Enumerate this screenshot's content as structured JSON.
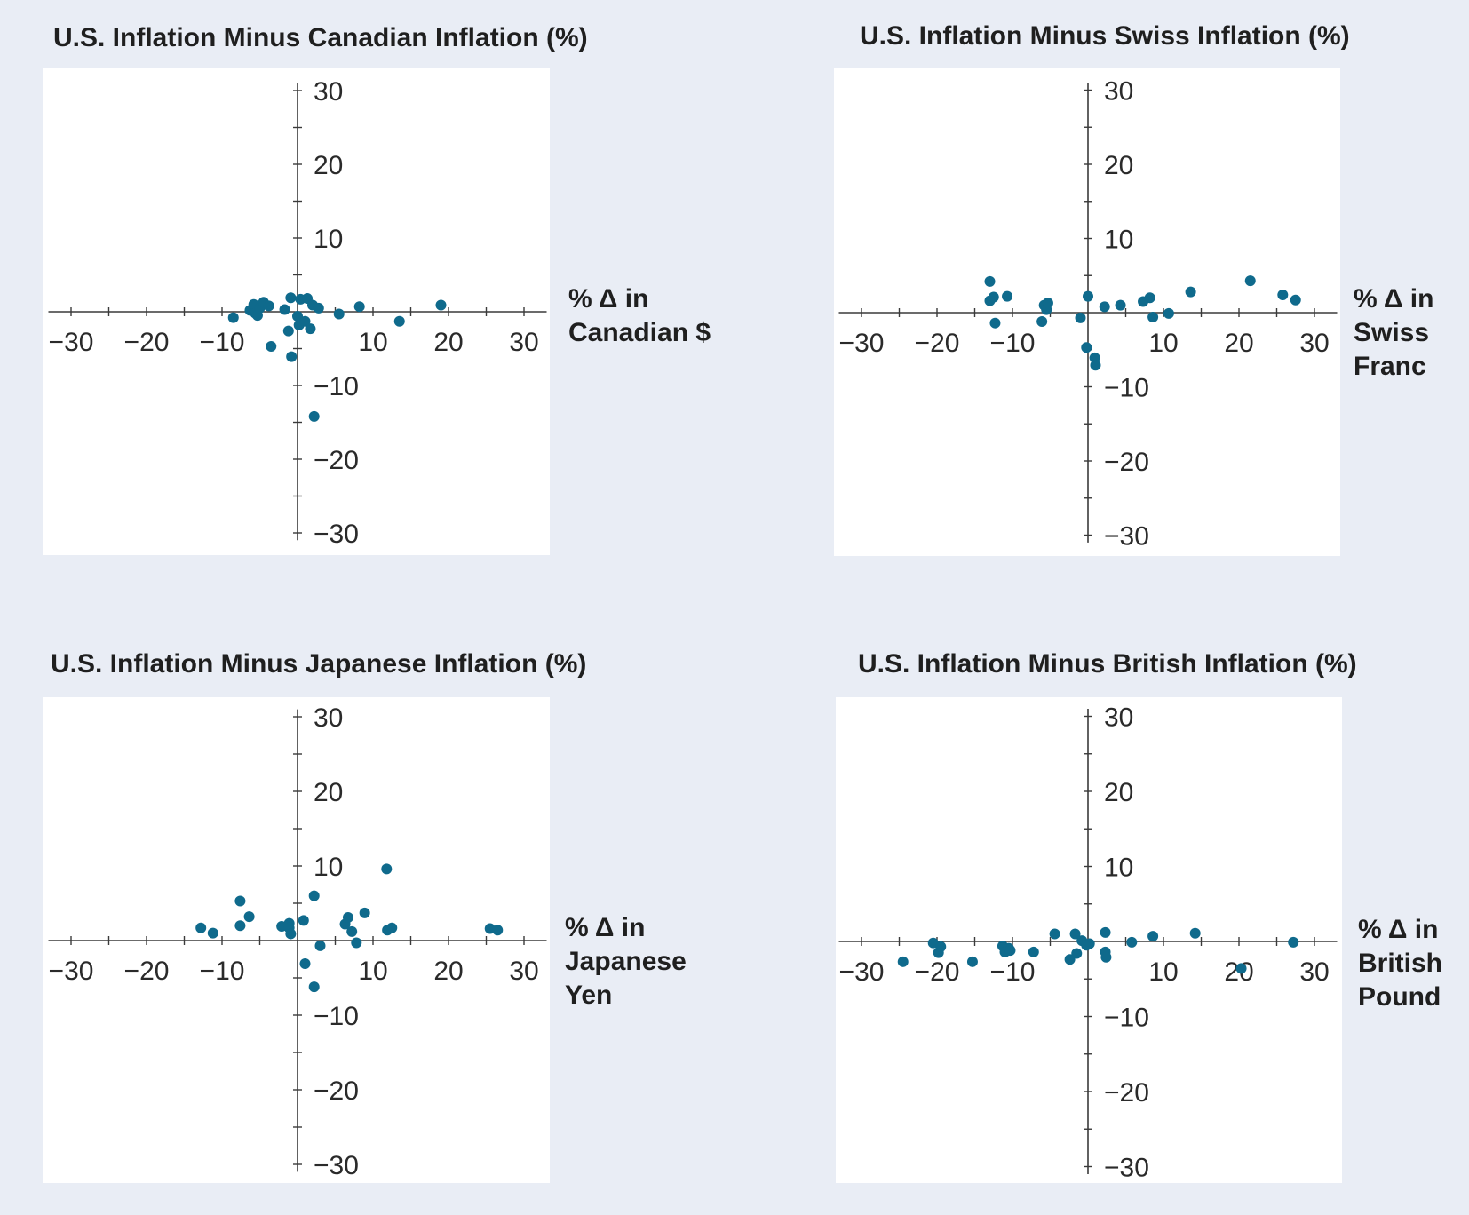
{
  "colors": {
    "background": "#e9edf5",
    "panel": "#ffffff",
    "point": "#0f6a8c",
    "axis": "#3a3a3a"
  },
  "chart_data": [
    {
      "type": "scatter",
      "title": "U.S. Inflation Minus Canadian Inflation (%)",
      "xlabel_lines": [
        "% Δ in",
        "Canadian $"
      ],
      "xlim": [
        -33,
        33
      ],
      "ylim": [
        -31,
        31
      ],
      "xticks": [
        -30,
        -20,
        -10,
        10,
        20,
        30
      ],
      "yticks": [
        30,
        20,
        10,
        -10,
        -20,
        -30
      ],
      "grid": false,
      "points": [
        {
          "x": -8.5,
          "y": -0.8
        },
        {
          "x": -6.3,
          "y": 0.2
        },
        {
          "x": -5.8,
          "y": 1.0
        },
        {
          "x": -5.6,
          "y": -0.2
        },
        {
          "x": -5.3,
          "y": -0.5
        },
        {
          "x": -5.0,
          "y": 0.5
        },
        {
          "x": -4.5,
          "y": 1.3
        },
        {
          "x": -3.8,
          "y": 0.8
        },
        {
          "x": -3.5,
          "y": -4.7
        },
        {
          "x": -1.7,
          "y": 0.3
        },
        {
          "x": -1.2,
          "y": -2.6
        },
        {
          "x": -0.9,
          "y": 1.9
        },
        {
          "x": -0.8,
          "y": -6.1
        },
        {
          "x": 0.0,
          "y": -0.6
        },
        {
          "x": 0.2,
          "y": -1.8
        },
        {
          "x": 0.4,
          "y": 1.7
        },
        {
          "x": 1.0,
          "y": -1.3
        },
        {
          "x": 1.3,
          "y": 1.8
        },
        {
          "x": 1.7,
          "y": -2.3
        },
        {
          "x": 2.0,
          "y": 0.9
        },
        {
          "x": 2.2,
          "y": -14.2
        },
        {
          "x": 2.8,
          "y": 0.5
        },
        {
          "x": 5.5,
          "y": -0.3
        },
        {
          "x": 8.2,
          "y": 0.7
        },
        {
          "x": 13.5,
          "y": -1.3
        },
        {
          "x": 19.0,
          "y": 0.9
        }
      ]
    },
    {
      "type": "scatter",
      "title": "U.S. Inflation Minus Swiss Inflation (%)",
      "xlabel_lines": [
        "% Δ in",
        "Swiss",
        "Franc"
      ],
      "xlim": [
        -33,
        33
      ],
      "ylim": [
        -31,
        31
      ],
      "xticks": [
        -30,
        -20,
        -10,
        10,
        20,
        30
      ],
      "yticks": [
        30,
        20,
        10,
        -10,
        -20,
        -30
      ],
      "grid": false,
      "points": [
        {
          "x": -13.0,
          "y": 4.2
        },
        {
          "x": -13.0,
          "y": 1.6
        },
        {
          "x": -12.5,
          "y": 2.1
        },
        {
          "x": -12.3,
          "y": -1.4
        },
        {
          "x": -10.7,
          "y": 2.2
        },
        {
          "x": -6.1,
          "y": -1.2
        },
        {
          "x": -5.8,
          "y": 1.0
        },
        {
          "x": -5.5,
          "y": 0.4
        },
        {
          "x": -5.3,
          "y": 1.3
        },
        {
          "x": -1.0,
          "y": -0.7
        },
        {
          "x": 0.0,
          "y": 2.2
        },
        {
          "x": -0.2,
          "y": -4.7
        },
        {
          "x": 0.9,
          "y": -6.1
        },
        {
          "x": 1.0,
          "y": -7.1
        },
        {
          "x": 2.2,
          "y": 0.8
        },
        {
          "x": 4.3,
          "y": 1.0
        },
        {
          "x": 7.3,
          "y": 1.5
        },
        {
          "x": 8.2,
          "y": 2.0
        },
        {
          "x": 8.6,
          "y": -0.6
        },
        {
          "x": 10.7,
          "y": -0.1
        },
        {
          "x": 13.6,
          "y": 2.8
        },
        {
          "x": 21.5,
          "y": 4.3
        },
        {
          "x": 25.8,
          "y": 2.4
        },
        {
          "x": 27.5,
          "y": 1.7
        }
      ]
    },
    {
      "type": "scatter",
      "title": "U.S. Inflation Minus Japanese Inflation (%)",
      "xlabel_lines": [
        "% Δ in",
        "Japanese",
        "Yen"
      ],
      "xlim": [
        -33,
        33
      ],
      "ylim": [
        -31,
        31
      ],
      "xticks": [
        -30,
        -20,
        -10,
        10,
        20,
        30
      ],
      "yticks": [
        30,
        20,
        10,
        -10,
        -20,
        -30
      ],
      "grid": false,
      "points": [
        {
          "x": -12.8,
          "y": 1.7
        },
        {
          "x": -11.2,
          "y": 1.0
        },
        {
          "x": -7.6,
          "y": 5.3
        },
        {
          "x": -7.6,
          "y": 2.0
        },
        {
          "x": -6.4,
          "y": 3.2
        },
        {
          "x": -2.1,
          "y": 1.9
        },
        {
          "x": -1.1,
          "y": 2.3
        },
        {
          "x": -1.1,
          "y": 1.7
        },
        {
          "x": -0.9,
          "y": 0.9
        },
        {
          "x": 0.8,
          "y": 2.7
        },
        {
          "x": 1.0,
          "y": -3.1
        },
        {
          "x": 2.2,
          "y": 6.0
        },
        {
          "x": 2.2,
          "y": -6.2
        },
        {
          "x": 3.0,
          "y": -0.7
        },
        {
          "x": 6.3,
          "y": 2.2
        },
        {
          "x": 6.7,
          "y": 3.1
        },
        {
          "x": 7.2,
          "y": 1.2
        },
        {
          "x": 7.8,
          "y": -0.3
        },
        {
          "x": 8.9,
          "y": 3.7
        },
        {
          "x": 11.8,
          "y": 9.6
        },
        {
          "x": 11.9,
          "y": 1.4
        },
        {
          "x": 12.5,
          "y": 1.7
        },
        {
          "x": 25.5,
          "y": 1.6
        },
        {
          "x": 26.5,
          "y": 1.4
        }
      ]
    },
    {
      "type": "scatter",
      "title": "U.S. Inflation Minus British Inflation (%)",
      "xlabel_lines": [
        "% Δ in",
        "British",
        "Pound"
      ],
      "xlim": [
        -33,
        33
      ],
      "ylim": [
        -31,
        31
      ],
      "xticks": [
        -30,
        -20,
        -10,
        10,
        20,
        30
      ],
      "yticks": [
        30,
        20,
        10,
        -10,
        -20,
        -30
      ],
      "grid": false,
      "points": [
        {
          "x": -24.5,
          "y": -2.7
        },
        {
          "x": -20.5,
          "y": -0.2
        },
        {
          "x": -19.8,
          "y": -1.5
        },
        {
          "x": -19.5,
          "y": -0.7
        },
        {
          "x": -15.3,
          "y": -2.7
        },
        {
          "x": -11.3,
          "y": -0.6
        },
        {
          "x": -11.0,
          "y": -1.4
        },
        {
          "x": -10.5,
          "y": -0.9
        },
        {
          "x": -10.3,
          "y": -1.2
        },
        {
          "x": -7.2,
          "y": -1.4
        },
        {
          "x": -4.4,
          "y": 1.0
        },
        {
          "x": -2.4,
          "y": -2.4
        },
        {
          "x": -1.7,
          "y": 1.0
        },
        {
          "x": -1.5,
          "y": -1.6
        },
        {
          "x": -0.8,
          "y": 0.1
        },
        {
          "x": -0.2,
          "y": -0.5
        },
        {
          "x": 0.2,
          "y": -0.3
        },
        {
          "x": 2.3,
          "y": 1.2
        },
        {
          "x": 2.3,
          "y": -1.4
        },
        {
          "x": 2.4,
          "y": -2.1
        },
        {
          "x": 5.8,
          "y": -0.1
        },
        {
          "x": 8.6,
          "y": 0.7
        },
        {
          "x": 14.2,
          "y": 1.1
        },
        {
          "x": 20.3,
          "y": -3.6
        },
        {
          "x": 27.2,
          "y": -0.1
        }
      ]
    }
  ]
}
